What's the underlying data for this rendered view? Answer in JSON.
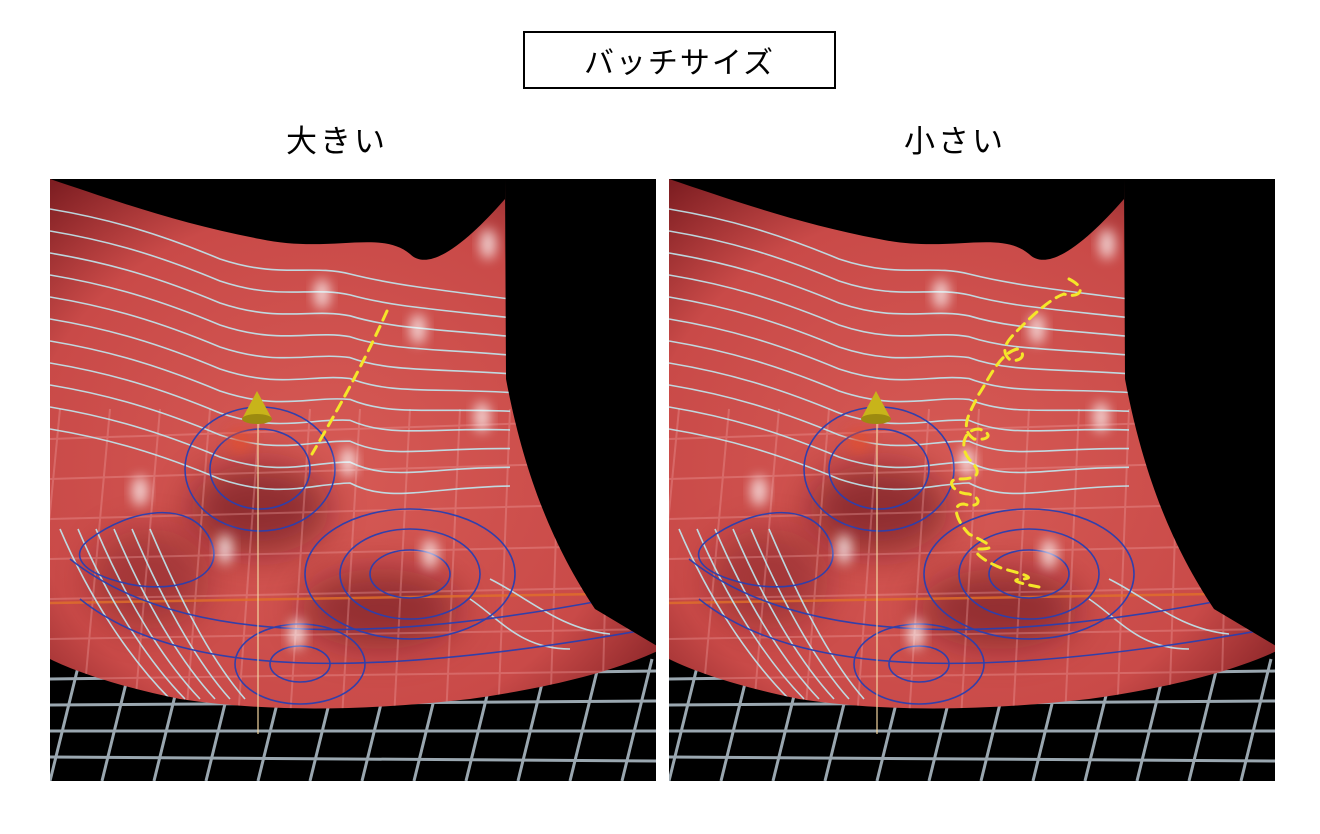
{
  "title": "バッチサイズ",
  "panels": [
    {
      "label": "大きい",
      "path_style": "smooth"
    },
    {
      "label": "小さい",
      "path_style": "noisy"
    }
  ],
  "colors": {
    "surface": "#c94a48",
    "surface_dark": "#7e1e22",
    "contour_light": "#bfe8f0",
    "contour_dark": "#2a3fb0",
    "grid": "#9aa7b0",
    "path": "#f5e629",
    "marker": "#c8b41a",
    "axis": "#e0702a"
  }
}
